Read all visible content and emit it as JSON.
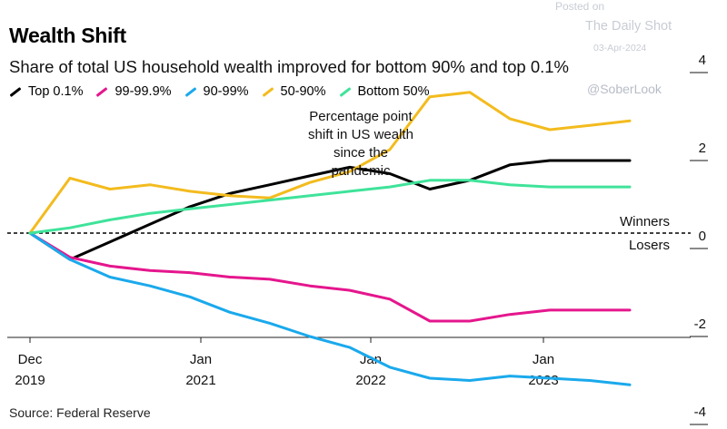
{
  "chart_data": {
    "type": "line",
    "title": "Wealth Shift",
    "subtitle": "Share of total US household wealth improved for bottom 90% and top 0.1%",
    "annotation": "Percentage point shift in US wealth since the pandemic",
    "annotation_lines": [
      "Percentage point",
      "shift in US wealth",
      "since the",
      "pandemic"
    ],
    "winners_label": "Winners",
    "losers_label": "Losers",
    "source": "Source: Federal Reserve",
    "legend_placement": "top-left",
    "ylim": [
      -4.8,
      4.4
    ],
    "yticks": [
      {
        "value": 4,
        "label": "4"
      },
      {
        "value": 2,
        "label": "2"
      },
      {
        "value": 0,
        "label": "0"
      },
      {
        "value": -2,
        "label": "-2"
      },
      {
        "value": -4,
        "label": "-4"
      }
    ],
    "xlim": [
      2019.75,
      2023.75
    ],
    "xticks": [
      {
        "value": 2019.75,
        "line1": "Dec",
        "line2": "2019"
      },
      {
        "value": 2021.0,
        "line1": "Jan",
        "line2": "2021"
      },
      {
        "value": 2022.0,
        "line1": "Jan",
        "line2": "2022"
      },
      {
        "value": 2023.0,
        "line1": "Jan",
        "line2": "2023"
      }
    ],
    "x": [
      2019.75,
      2020.0,
      2020.25,
      2020.5,
      2020.75,
      2021.0,
      2021.25,
      2021.5,
      2021.75,
      2022.0,
      2022.25,
      2022.5,
      2022.75,
      2023.0,
      2023.25,
      2023.5
    ],
    "series": [
      {
        "name": "Top 0.1%",
        "legend_label": "Top 0.1%",
        "color": "#000000",
        "values": [
          0.0,
          -0.6,
          -0.2,
          0.2,
          0.6,
          0.9,
          1.1,
          1.3,
          1.5,
          1.35,
          1.0,
          1.2,
          1.55,
          1.65,
          1.65,
          1.65
        ]
      },
      {
        "name": "99-99.9%",
        "legend_label": "99-99.9%",
        "color": "#e5168d",
        "values": [
          0.0,
          -0.55,
          -0.75,
          -0.85,
          -0.9,
          -1.0,
          -1.05,
          -1.2,
          -1.3,
          -1.5,
          -2.0,
          -2.0,
          -1.85,
          -1.75,
          -1.75,
          -1.75
        ]
      },
      {
        "name": "90-99%",
        "legend_label": "90-99%",
        "color": "#1aa9ec",
        "values": [
          0.0,
          -0.6,
          -1.0,
          -1.2,
          -1.45,
          -1.8,
          -2.05,
          -2.35,
          -2.6,
          -3.05,
          -3.3,
          -3.35,
          -3.25,
          -3.3,
          -3.35,
          -3.45
        ]
      },
      {
        "name": "50-90%",
        "legend_label": "50-90%",
        "color": "#f3bb1e",
        "values": [
          0.0,
          1.25,
          1.0,
          1.1,
          0.95,
          0.85,
          0.8,
          1.15,
          1.4,
          1.9,
          3.1,
          3.2,
          2.6,
          2.35,
          2.45,
          2.55
        ]
      },
      {
        "name": "Bottom 50%",
        "legend_label": "Bottom 50%",
        "color": "#3fe39a",
        "values": [
          0.0,
          0.12,
          0.3,
          0.45,
          0.55,
          0.65,
          0.75,
          0.85,
          0.95,
          1.05,
          1.2,
          1.2,
          1.1,
          1.05,
          1.05,
          1.05
        ]
      }
    ]
  },
  "watermark": {
    "posted": "Posted on",
    "site": "The Daily Shot",
    "date": "03-Apr-2024",
    "handle": "@SoberLook"
  }
}
